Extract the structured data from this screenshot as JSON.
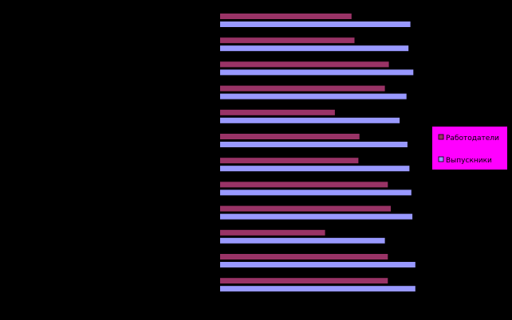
{
  "chart_data": {
    "type": "bar",
    "orientation": "horizontal",
    "title": "",
    "xlabel": "",
    "ylabel": "",
    "categories": [
      "",
      "",
      "",
      "",
      "",
      "",
      "",
      "",
      "",
      "",
      "",
      ""
    ],
    "xlim": [
      0,
      100
    ],
    "grid": false,
    "legend_position": "right",
    "series": [
      {
        "name": "Работодатели",
        "color": "#993366",
        "values": [
          67,
          68.5,
          86,
          84,
          58.5,
          71,
          70.5,
          85.5,
          87,
          53.5,
          85.5,
          85.5
        ]
      },
      {
        "name": "Выпускники",
        "color": "#9999FF",
        "values": [
          97,
          96,
          98.5,
          95,
          91.5,
          95.5,
          96.5,
          97.5,
          98,
          84,
          99.5,
          99.5
        ]
      }
    ],
    "colors": {
      "background": "#000000",
      "legend_background": "#FF00FF"
    }
  }
}
